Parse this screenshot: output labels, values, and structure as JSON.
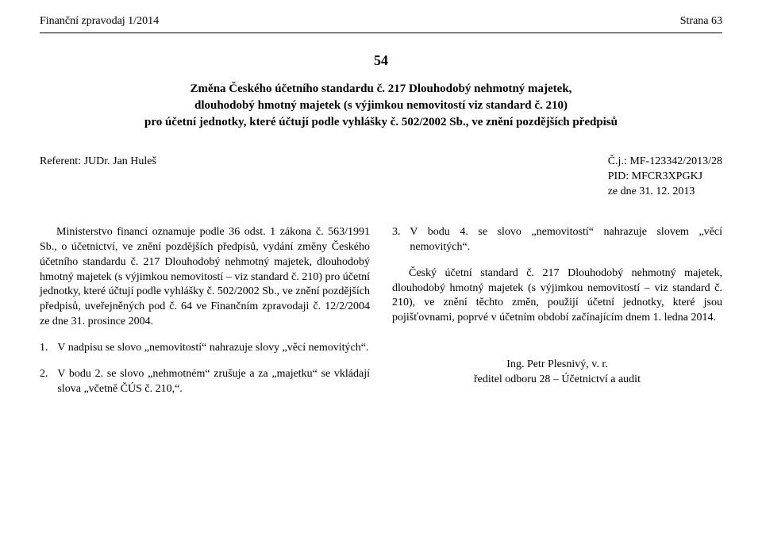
{
  "header": {
    "left": "Finanční zpravodaj 1/2014",
    "right": "Strana 63"
  },
  "docNumber": "54",
  "title": {
    "line1": "Změna Českého účetního standardu č. 217 Dlouhodobý nehmotný majetek,",
    "line2": "dlouhodobý hmotný majetek (s výjimkou nemovitostí viz standard č. 210)",
    "line3": "pro účetní jednotky, které účtují podle vyhlášky č. 502/2002 Sb., ve znění pozdějších předpisů"
  },
  "referent": {
    "label": "Referent:  JUDr. Jan Huleš",
    "cj": "Č.j.: MF-123342/2013/28",
    "pid": "PID: MFCR3XPGKJ",
    "date": "ze dne 31. 12. 2013"
  },
  "leftCol": {
    "para1": "Ministerstvo financí oznamuje podle 36 odst. 1 zákona č. 563/1991 Sb., o účetnictví, ve znění pozdějších předpisů, vydání změny Českého účetního standardu č. 217 Dlouhodobý nehmotný majetek, dlouhodobý hmotný majetek (s výjimkou nemovitostí – viz standard č. 210) pro účetní jednotky, které účtují podle vyhlášky č. 502/2002 Sb., ve znění pozdějších předpisů, uveřejněných pod č. 64 ve Finančním zpravodaji č. 12/2/2004 ze dne 31. prosince 2004.",
    "item1": {
      "num": "1.",
      "text": "V nadpisu se slovo „nemovitostí“ nahrazuje slovy „věcí nemovitých“."
    },
    "item2": {
      "num": "2.",
      "text": "V bodu 2. se slovo „nehmotném“ zrušuje a za „majetku“ se vkládají slova „včetně ČÚS č. 210,“."
    }
  },
  "rightCol": {
    "item3": {
      "num": "3.",
      "text": "V bodu 4. se slovo „nemovitostí“ nahrazuje slovem „věcí nemovitých“."
    },
    "para2": "Český účetní standard č. 217 Dlouhodobý nehmotný majetek, dlouhodobý hmotný majetek (s výjimkou nemovitostí – viz standard č. 210), ve znění těchto změn, použijí účetní jednotky, které jsou pojišťovnami, poprvé v účetním období začínajícím dnem 1. ledna 2014.",
    "sig1": "Ing. Petr Plesnivý, v. r.",
    "sig2": "ředitel odboru 28 – Účetnictví a audit"
  }
}
